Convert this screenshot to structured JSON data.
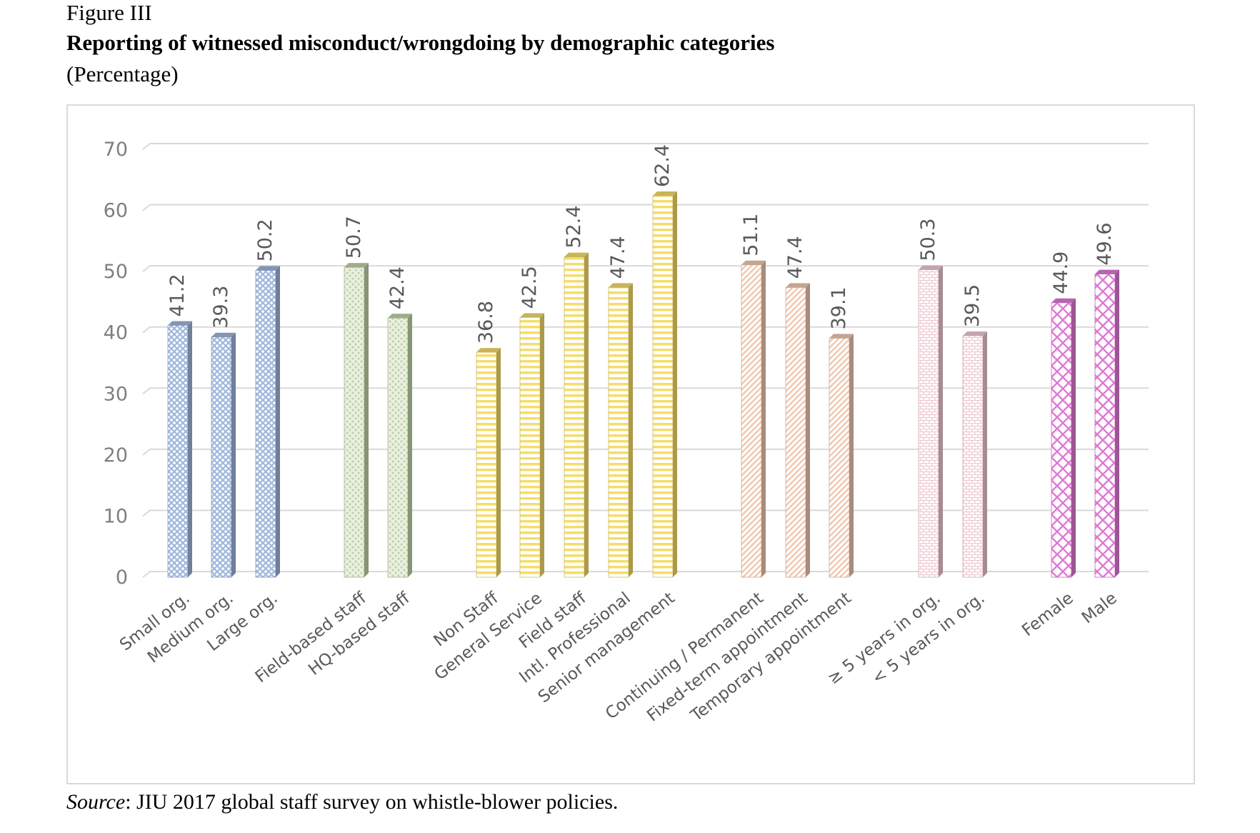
{
  "figure": {
    "label": "Figure III",
    "title": "Reporting of witnessed misconduct/wrongdoing by demographic categories",
    "unit": "(Percentage)",
    "source_prefix": "Source",
    "source_text": ": JIU 2017 global staff survey on whistle-blower policies."
  },
  "chart_data": {
    "type": "bar",
    "title": "Reporting of witnessed misconduct/wrongdoing by demographic categories",
    "xlabel": "",
    "ylabel": "",
    "ylim": [
      0,
      70
    ],
    "yticks": [
      0,
      10,
      20,
      30,
      40,
      50,
      60,
      70
    ],
    "grid": true,
    "legend": "none",
    "groups": [
      {
        "color": "#9fb7dc",
        "pattern": "crosshatch",
        "items": [
          {
            "label": "Small org.",
            "value": 41.2
          },
          {
            "label": "Medium org.",
            "value": 39.3
          },
          {
            "label": "Large org.",
            "value": 50.2
          }
        ]
      },
      {
        "color": "#c2d3a8",
        "pattern": "dots",
        "items": [
          {
            "label": "Field-based staff",
            "value": 50.7
          },
          {
            "label": "HQ-based staff",
            "value": 42.4
          }
        ]
      },
      {
        "color": "#f5dc6a",
        "pattern": "horizontal",
        "items": [
          {
            "label": "Non Staff",
            "value": 36.8
          },
          {
            "label": "General Service",
            "value": 42.5
          },
          {
            "label": "Field staff",
            "value": 52.4
          },
          {
            "label": "Intl. Professional",
            "value": 47.4
          },
          {
            "label": "Senior management",
            "value": 62.4
          }
        ]
      },
      {
        "color": "#f0c8b0",
        "pattern": "diagonal",
        "items": [
          {
            "label": "Continuing / Permanent",
            "value": 51.1
          },
          {
            "label": "Fixed-term appointment",
            "value": 47.4
          },
          {
            "label": "Temporary appointment",
            "value": 39.1
          }
        ]
      },
      {
        "color": "#efc9d0",
        "pattern": "brick",
        "items": [
          {
            "label": "≥ 5 years in org.",
            "value": 50.3
          },
          {
            "label": "< 5 years in org.",
            "value": 39.5
          }
        ]
      },
      {
        "color": "#e07ad6",
        "pattern": "diamond",
        "items": [
          {
            "label": "Female",
            "value": 44.9
          },
          {
            "label": "Male",
            "value": 49.6
          }
        ]
      }
    ]
  }
}
